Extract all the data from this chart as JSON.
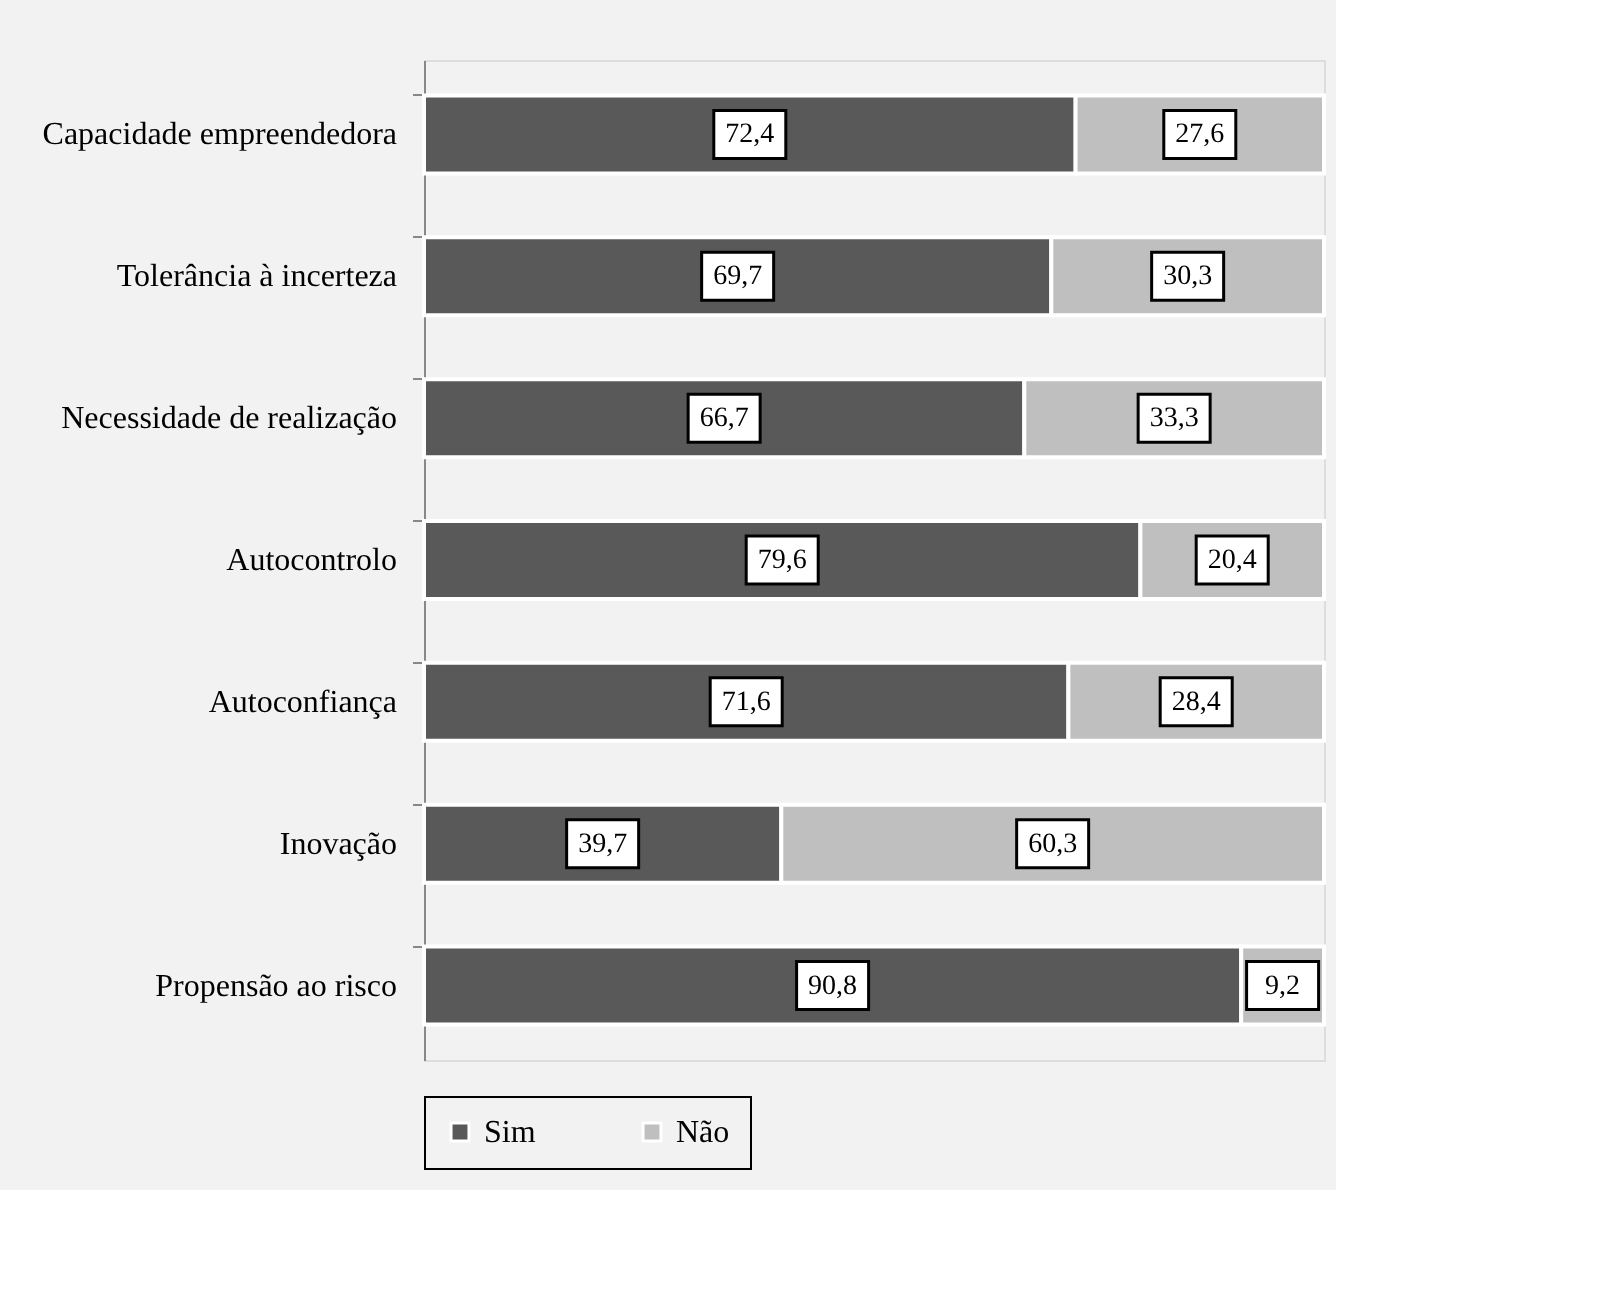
{
  "chart_data": {
    "type": "bar",
    "orientation": "horizontal",
    "stacked": true,
    "legend": "bottom",
    "grid": false,
    "tick_labels": "y",
    "categories": [
      "Capacidade empreendedora",
      "Tolerância à incerteza",
      "Necessidade de realização ",
      "Autocontrolo",
      "Autoconfiança",
      "Inovação",
      "Propensão ao risco"
    ],
    "series": [
      {
        "name": "Sim",
        "color": "#595959",
        "values": [
          72.4,
          69.7,
          66.7,
          79.6,
          71.6,
          39.7,
          90.8
        ],
        "value_labels": [
          "72,4",
          "69,7",
          "66,7",
          "79,6",
          "71,6",
          "39,7",
          "90,8"
        ]
      },
      {
        "name": "Não",
        "color": "#bfbfbf",
        "values": [
          27.6,
          30.3,
          33.3,
          20.4,
          28.4,
          60.3,
          9.2
        ],
        "value_labels": [
          "27,6",
          "30,3",
          "33,3",
          "20,4",
          "28,4",
          "60,3",
          "9,2"
        ]
      }
    ]
  }
}
